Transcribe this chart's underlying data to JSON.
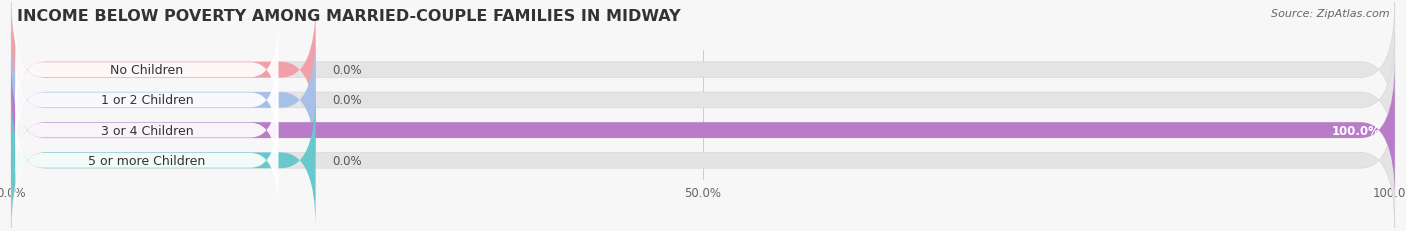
{
  "title": "INCOME BELOW POVERTY AMONG MARRIED-COUPLE FAMILIES IN MIDWAY",
  "source": "Source: ZipAtlas.com",
  "categories": [
    "No Children",
    "1 or 2 Children",
    "3 or 4 Children",
    "5 or more Children"
  ],
  "values": [
    0.0,
    0.0,
    100.0,
    0.0
  ],
  "bar_colors": [
    "#f0a0a8",
    "#a8c0e8",
    "#b87cc8",
    "#68c8cc"
  ],
  "xlim": [
    0,
    100
  ],
  "xticks": [
    0,
    50,
    100
  ],
  "xticklabels": [
    "0.0%",
    "50.0%",
    "100.0%"
  ],
  "bar_height": 0.52,
  "background_color": "#f7f7f7",
  "bar_background_color": "#e4e4e4",
  "title_fontsize": 11.5,
  "source_fontsize": 8,
  "label_fontsize": 9,
  "value_fontsize": 8.5,
  "tick_fontsize": 8.5,
  "colored_fill_for_zero": 22
}
